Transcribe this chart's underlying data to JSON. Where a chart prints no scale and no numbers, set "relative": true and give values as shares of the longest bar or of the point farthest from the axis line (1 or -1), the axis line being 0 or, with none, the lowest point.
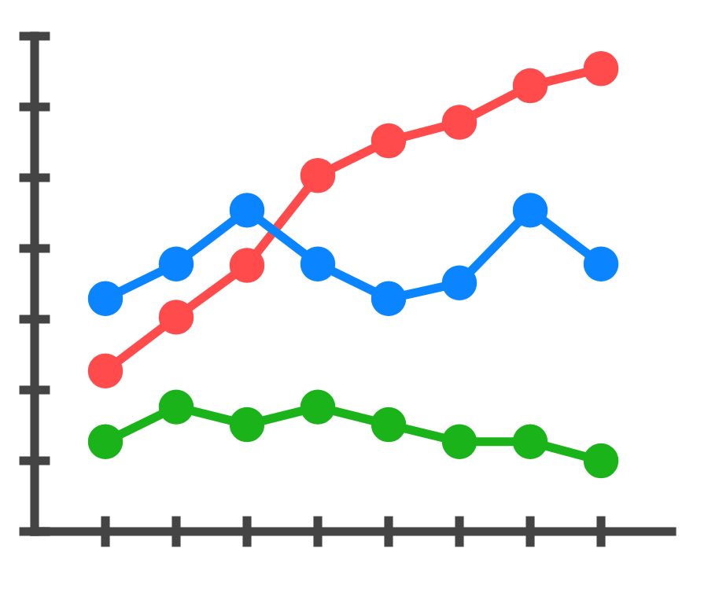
{
  "chart_data": {
    "type": "line",
    "relative": true,
    "categories": [
      null,
      null,
      null,
      null,
      null,
      null,
      null,
      null
    ],
    "series": [
      {
        "color": "#ff4b4b",
        "values": [
          0.347,
          0.463,
          0.575,
          0.769,
          0.844,
          0.884,
          0.963,
          1
        ]
      },
      {
        "color": "#0a84ff",
        "values": [
          0.503,
          0.578,
          0.694,
          0.578,
          0.503,
          0.537,
          0.694,
          0.578
        ]
      },
      {
        "color": "#1ab31a",
        "values": [
          0.194,
          0.269,
          0.231,
          0.269,
          0.231,
          0.194,
          0.194,
          0.153
        ]
      }
    ],
    "marker": "circle",
    "line_style": "solid",
    "grid": false,
    "legend": false
  }
}
